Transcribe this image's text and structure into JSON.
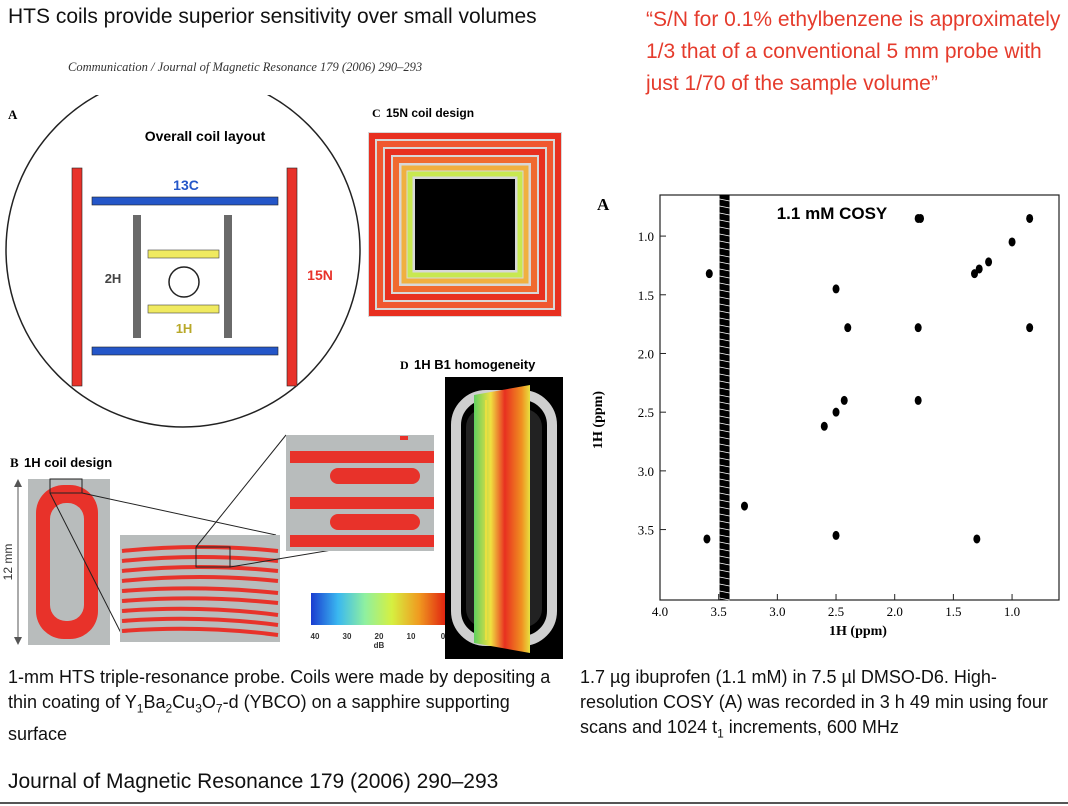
{
  "slide": {
    "title": "HTS coils provide superior sensitivity over small volumes",
    "quote": "“S/N for 0.1% ethylbenzene is approximately 1/3 that of a conventional 5 mm probe with just 1/70 of the sample volume”",
    "journal_header": "Communication / Journal of Magnetic Resonance 179 (2006) 290–293",
    "citation": "Journal of Magnetic Resonance 179 (2006) 290–293"
  },
  "figure_left": {
    "panel_a": {
      "letter": "A",
      "title": "Overall coil layout",
      "labels": {
        "c13": "13C",
        "n15": "15N",
        "h2": "2H",
        "h1": "1H"
      }
    },
    "panel_b": {
      "letter": "B",
      "title": "1H coil design",
      "scale_label": "12 mm"
    },
    "panel_c": {
      "letter": "C",
      "title": "15N coil design"
    },
    "panel_d": {
      "letter": "D",
      "title": "1H B1 homogeneity"
    },
    "colorbar": {
      "ticks": [
        "40",
        "30",
        "20",
        "10",
        "0"
      ],
      "unit": "dB"
    },
    "colors": {
      "red": "#e8322a",
      "blue": "#2456c8",
      "yellow": "#f0ea60",
      "gray": "#6a6a6a"
    }
  },
  "caption_left": {
    "pre": "1-mm HTS triple-resonance probe. Coils were made by depositing a thin coating of Y",
    "s1": "1",
    "b1": "Ba",
    "s2": "2",
    "b2": "Cu",
    "s3": "3",
    "b3": "O",
    "s4": "7",
    "post": "-d (YBCO) on a sapphire supporting surface"
  },
  "caption_right": {
    "pre": "1.7 µg ibuprofen (1.1 mM) in 7.5 µl DMSO-D6. High-resolution COSY (A) was recorded in 3 h 49 min using four scans and 1024 t",
    "sub": "1",
    "post": " increments, 600 MHz"
  },
  "chart_data": {
    "type": "scatter",
    "panel_letter": "A",
    "title": "1.1 mM COSY",
    "xlabel": "1H (ppm)",
    "ylabel": "1H (ppm)",
    "xlim": [
      4.0,
      0.6
    ],
    "ylim": [
      0.65,
      4.1
    ],
    "x_ticks": [
      "4.0",
      "3.5",
      "3.0",
      "2.5",
      "2.0",
      "1.5",
      "1.0"
    ],
    "y_ticks": [
      "1.0",
      "1.5",
      "2.0",
      "2.5",
      "3.0",
      "3.5"
    ],
    "x_tick_values": [
      4.0,
      3.5,
      3.0,
      2.5,
      2.0,
      1.5,
      1.0
    ],
    "y_tick_values": [
      1.0,
      1.5,
      2.0,
      2.5,
      3.0,
      3.5
    ],
    "solvent_ridge": {
      "x": 3.45,
      "y_range": [
        0.65,
        4.1
      ]
    },
    "peaks": [
      {
        "x": 3.58,
        "y": 1.32
      },
      {
        "x": 3.6,
        "y": 3.58
      },
      {
        "x": 3.28,
        "y": 3.3
      },
      {
        "x": 2.5,
        "y": 1.45
      },
      {
        "x": 2.5,
        "y": 2.5
      },
      {
        "x": 2.43,
        "y": 2.4
      },
      {
        "x": 2.4,
        "y": 1.78
      },
      {
        "x": 2.6,
        "y": 2.62
      },
      {
        "x": 2.5,
        "y": 3.55
      },
      {
        "x": 1.8,
        "y": 0.85
      },
      {
        "x": 1.78,
        "y": 0.85
      },
      {
        "x": 1.8,
        "y": 1.78
      },
      {
        "x": 1.8,
        "y": 2.4
      },
      {
        "x": 1.32,
        "y": 1.32
      },
      {
        "x": 1.28,
        "y": 1.28
      },
      {
        "x": 1.3,
        "y": 3.58
      },
      {
        "x": 1.2,
        "y": 1.22
      },
      {
        "x": 1.0,
        "y": 1.05
      },
      {
        "x": 0.85,
        "y": 0.85
      },
      {
        "x": 0.85,
        "y": 1.78
      }
    ]
  }
}
